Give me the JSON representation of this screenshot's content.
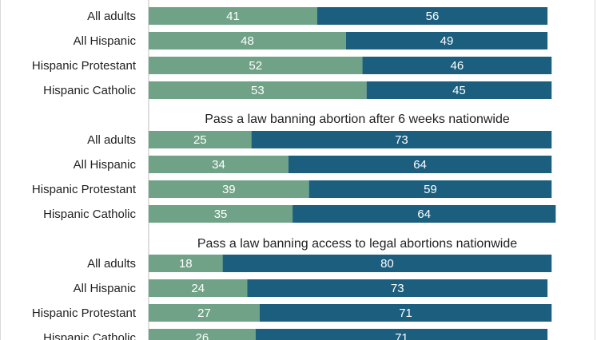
{
  "chart_data": {
    "type": "bar",
    "stacked": true,
    "orientation": "horizontal",
    "colors": {
      "left_series": "#6fa287",
      "right_series": "#1b5e7e"
    },
    "categories": [
      "All adults",
      "All Hispanic",
      "Hispanic Protestant",
      "Hispanic Catholic"
    ],
    "panels": [
      {
        "title": "",
        "series": [
          {
            "values": [
              41,
              48,
              52,
              53
            ]
          },
          {
            "values": [
              56,
              49,
              46,
              45
            ]
          }
        ]
      },
      {
        "title": "Pass a law banning abortion after 6 weeks nationwide",
        "series": [
          {
            "values": [
              25,
              34,
              39,
              35
            ]
          },
          {
            "values": [
              73,
              64,
              59,
              64
            ]
          }
        ]
      },
      {
        "title": "Pass a law banning access to legal abortions nationwide",
        "series": [
          {
            "values": [
              18,
              24,
              27,
              26
            ]
          },
          {
            "values": [
              80,
              73,
              71,
              71
            ]
          }
        ]
      }
    ],
    "xlim": [
      0,
      100
    ],
    "grid": false,
    "legend": "none"
  }
}
